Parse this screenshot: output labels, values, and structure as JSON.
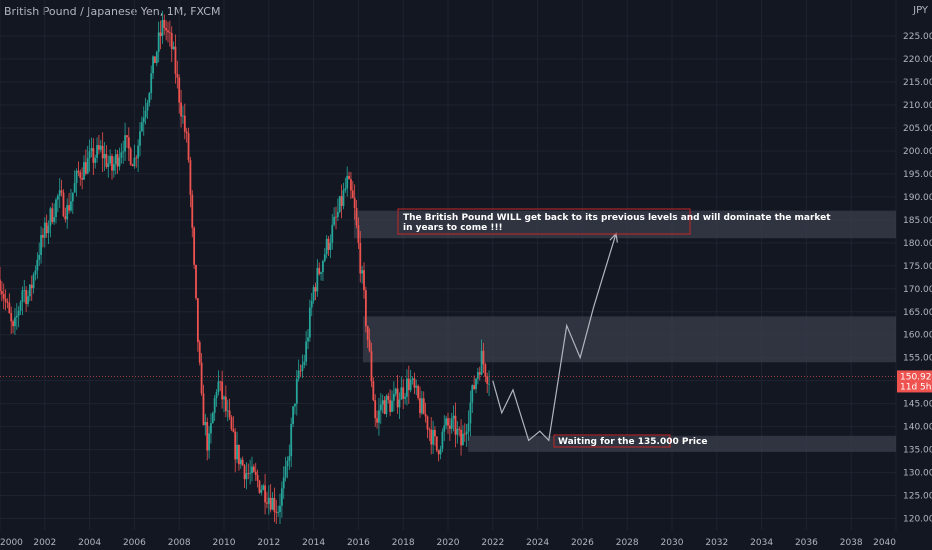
{
  "header": {
    "symbol_title": "British Pound / Japanese Yen, 1M, FXCM",
    "currency": "JPY"
  },
  "chart_data": {
    "type": "candlestick",
    "title": "British Pound / Japanese Yen, 1M, FXCM",
    "xlim": [
      2000,
      2040
    ],
    "ylim": [
      117.5,
      228.5
    ],
    "x_ticks": [
      "2000",
      "2002",
      "2004",
      "2006",
      "2008",
      "2010",
      "2012",
      "2014",
      "2016",
      "2018",
      "2020",
      "2022",
      "2024",
      "2026",
      "2028",
      "2030",
      "2032",
      "2034",
      "2036",
      "2038",
      "2040"
    ],
    "y_ticks": [
      120,
      125,
      130,
      135,
      140,
      145,
      150,
      155,
      160,
      165,
      170,
      175,
      180,
      185,
      190,
      195,
      200,
      205,
      210,
      215,
      220,
      225
    ],
    "y_tick_labels": [
      "120.000",
      "125.000",
      "130.000",
      "135.000",
      "140.000",
      "145.000",
      "150.000",
      "155.000",
      "160.000",
      "165.000",
      "170.000",
      "175.000",
      "180.000",
      "185.000",
      "190.000",
      "195.000",
      "200.000",
      "205.000",
      "210.000",
      "215.000",
      "220.000",
      "225.000"
    ],
    "price_path": [
      [
        2000.0,
        172
      ],
      [
        2000.6,
        160
      ],
      [
        2001.0,
        170
      ],
      [
        2001.3,
        168
      ],
      [
        2001.7,
        178
      ],
      [
        2002.2,
        185
      ],
      [
        2002.6,
        190
      ],
      [
        2003.0,
        187
      ],
      [
        2003.5,
        195
      ],
      [
        2004.0,
        198
      ],
      [
        2004.5,
        200
      ],
      [
        2005.0,
        196
      ],
      [
        2005.5,
        202
      ],
      [
        2006.0,
        198
      ],
      [
        2006.3,
        206
      ],
      [
        2006.7,
        215
      ],
      [
        2007.0,
        222
      ],
      [
        2007.3,
        228
      ],
      [
        2007.7,
        222
      ],
      [
        2008.0,
        212
      ],
      [
        2008.4,
        200
      ],
      [
        2008.7,
        170
      ],
      [
        2009.0,
        145
      ],
      [
        2009.3,
        135
      ],
      [
        2009.7,
        150
      ],
      [
        2010.0,
        145
      ],
      [
        2010.5,
        135
      ],
      [
        2011.0,
        130
      ],
      [
        2011.5,
        128
      ],
      [
        2012.0,
        125
      ],
      [
        2012.4,
        122
      ],
      [
        2012.8,
        130
      ],
      [
        2013.2,
        148
      ],
      [
        2013.6,
        155
      ],
      [
        2014.0,
        170
      ],
      [
        2014.5,
        178
      ],
      [
        2015.0,
        185
      ],
      [
        2015.5,
        193
      ],
      [
        2015.8,
        188
      ],
      [
        2016.1,
        175
      ],
      [
        2016.4,
        160
      ],
      [
        2016.8,
        140
      ],
      [
        2017.0,
        145
      ],
      [
        2017.5,
        145
      ],
      [
        2018.0,
        148
      ],
      [
        2018.3,
        150
      ],
      [
        2018.7,
        145
      ],
      [
        2019.0,
        142
      ],
      [
        2019.5,
        135
      ],
      [
        2019.9,
        140
      ],
      [
        2020.3,
        140
      ],
      [
        2020.6,
        136
      ],
      [
        2021.0,
        145
      ],
      [
        2021.3,
        152
      ],
      [
        2021.5,
        155
      ],
      [
        2021.8,
        150.9
      ]
    ],
    "projection_path": [
      [
        2022.0,
        150
      ],
      [
        2022.4,
        143
      ],
      [
        2022.9,
        148
      ],
      [
        2023.6,
        137
      ],
      [
        2024.1,
        139
      ],
      [
        2024.5,
        137
      ],
      [
        2025.3,
        162
      ],
      [
        2025.9,
        155
      ],
      [
        2026.5,
        166
      ],
      [
        2027.5,
        182
      ]
    ],
    "zones": [
      {
        "from": 2015.8,
        "to": 2040,
        "low": 181,
        "high": 187
      },
      {
        "from": 2016.2,
        "to": 2040,
        "low": 154,
        "high": 164
      },
      {
        "from": 2020.9,
        "to": 2040,
        "low": 134.5,
        "high": 138
      }
    ],
    "current_price": 150.923,
    "current_price_label": "150.923",
    "bar_countdown": "11d 5h",
    "annotations": [
      {
        "text": "The British Pound WILL get back to its previous levels and will dominate the market",
        "text2": "in years to come !!!"
      },
      {
        "text": "Waiting for the 135.000 Price"
      }
    ]
  },
  "colors": {
    "up": "#26a69a",
    "down": "#ef5350",
    "zone": "#3a3f4b",
    "projection": "#b2b5be",
    "price_line": "#ef5350"
  }
}
